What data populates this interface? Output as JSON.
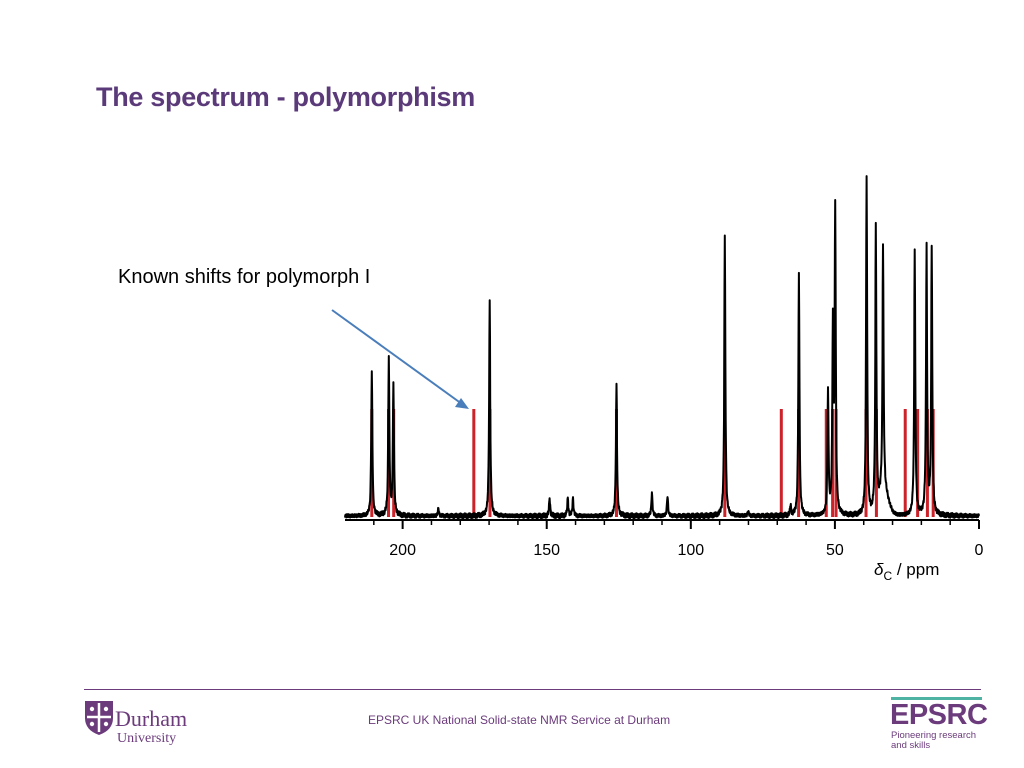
{
  "slide": {
    "title": "The spectrum - polymorphism",
    "annotation": "Known shifts for polymorph I"
  },
  "footer": {
    "text": "EPSRC UK National Solid-state NMR Service at Durham",
    "durham_name": "Durham",
    "durham_sub": "University",
    "epsrc_name": "EPSRC",
    "epsrc_tagline_1": "Pioneering research",
    "epsrc_tagline_2": "and skills"
  },
  "colors": {
    "title": "#5b3a7a",
    "spectrum": "#000000",
    "known_shift": "#cc2229",
    "arrow": "#4a7ebb",
    "footer": "#6b3b7c",
    "epsrc_bar": "#4fb3a3"
  },
  "chart_data": {
    "type": "line",
    "title": "",
    "xlabel_symbol": "δ",
    "xlabel_subscript": "C",
    "xlabel_unit": " / ppm",
    "xlim": [
      220,
      0
    ],
    "x_reversed": true,
    "ticks": [
      200,
      150,
      100,
      50,
      0
    ],
    "tick_labels": [
      "200",
      "150",
      "100",
      "50",
      "0"
    ],
    "y_axis_shown": false,
    "series": [
      {
        "kind": "spectrum",
        "color": "#000000",
        "peaks": [
          {
            "ppm": 210.7,
            "intensity": 0.57
          },
          {
            "ppm": 204.8,
            "intensity": 0.62
          },
          {
            "ppm": 203.2,
            "intensity": 0.51
          },
          {
            "ppm": 187.6,
            "intensity": 0.03
          },
          {
            "ppm": 169.8,
            "intensity": 0.85
          },
          {
            "ppm": 125.8,
            "intensity": 0.52
          },
          {
            "ppm": 149.0,
            "intensity": 0.07
          },
          {
            "ppm": 142.7,
            "intensity": 0.07
          },
          {
            "ppm": 140.9,
            "intensity": 0.07
          },
          {
            "ppm": 113.5,
            "intensity": 0.09
          },
          {
            "ppm": 108.1,
            "intensity": 0.08
          },
          {
            "ppm": 88.2,
            "intensity": 1.1
          },
          {
            "ppm": 80.1,
            "intensity": 0.02
          },
          {
            "ppm": 65.4,
            "intensity": 0.04
          },
          {
            "ppm": 62.5,
            "intensity": 0.95
          },
          {
            "ppm": 52.4,
            "intensity": 0.48
          },
          {
            "ppm": 50.7,
            "intensity": 0.73
          },
          {
            "ppm": 49.9,
            "intensity": 1.2
          },
          {
            "ppm": 39.0,
            "intensity": 1.33
          },
          {
            "ppm": 35.8,
            "intensity": 1.12
          },
          {
            "ppm": 33.3,
            "intensity": 0.98
          },
          {
            "ppm": 22.3,
            "intensity": 1.05
          },
          {
            "ppm": 18.2,
            "intensity": 1.07
          },
          {
            "ppm": 16.4,
            "intensity": 1.06
          }
        ]
      },
      {
        "kind": "stick",
        "name": "Known shifts for polymorph I",
        "color": "#cc2229",
        "shifts": [
          210.7,
          204.9,
          203.1,
          175.3,
          169.7,
          125.8,
          88.2,
          68.6,
          62.6,
          53.0,
          50.8,
          49.6,
          39.2,
          35.6,
          25.6,
          21.3,
          17.9,
          15.9
        ]
      }
    ]
  }
}
